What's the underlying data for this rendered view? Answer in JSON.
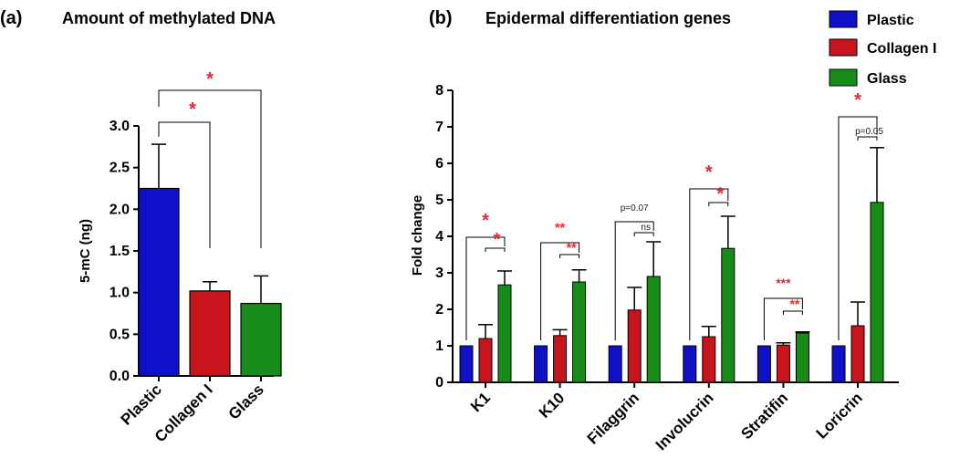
{
  "colors": {
    "plastic": "#1010c8",
    "collagen": "#c8141c",
    "glass": "#188c18",
    "sig": "#e8262e",
    "ns": "#222222"
  },
  "chart_data": [
    {
      "panel": "(a)",
      "type": "bar",
      "title": "Amount of methylated DNA",
      "ylabel": "5-mC (ng)",
      "xlabel": "",
      "ylim": [
        0,
        3.0
      ],
      "yticks": [
        "0.0",
        "0.5",
        "1.0",
        "1.5",
        "2.0",
        "2.5",
        "3.0"
      ],
      "categories": [
        "Plastic",
        "Collagen I",
        "Glass"
      ],
      "values": [
        2.25,
        1.02,
        0.87
      ],
      "errors": [
        0.53,
        0.11,
        0.33
      ],
      "annotations": [
        {
          "from": 0,
          "to": 1,
          "label": "*"
        },
        {
          "from": 0,
          "to": 2,
          "label": "*"
        }
      ]
    },
    {
      "panel": "(b)",
      "type": "bar",
      "title": "Epidermal differentiation genes",
      "ylabel": "Fold change",
      "xlabel": "",
      "ylim": [
        0,
        8
      ],
      "yticks": [
        "0",
        "1",
        "2",
        "3",
        "4",
        "5",
        "6",
        "7",
        "8"
      ],
      "legend_position": "top-right",
      "categories": [
        "K1",
        "K10",
        "Filaggrin",
        "Involucrin",
        "Stratifin",
        "Loricrin"
      ],
      "series": [
        {
          "name": "Plastic",
          "values": [
            1.0,
            1.0,
            1.0,
            1.0,
            1.0,
            1.0
          ],
          "errors": [
            0,
            0,
            0,
            0,
            0,
            0
          ]
        },
        {
          "name": "Collagen I",
          "values": [
            1.2,
            1.28,
            1.98,
            1.25,
            1.02,
            1.55
          ],
          "errors": [
            0.38,
            0.16,
            0.62,
            0.28,
            0.06,
            0.65
          ]
        },
        {
          "name": "Glass",
          "values": [
            2.67,
            2.75,
            2.9,
            3.67,
            1.35,
            4.93
          ],
          "errors": [
            0.38,
            0.33,
            0.95,
            0.88,
            0.03,
            1.5
          ]
        }
      ],
      "annotations": [
        {
          "category": "K1",
          "outer": "*",
          "inner": "*"
        },
        {
          "category": "K10",
          "outer": "**",
          "inner": "**"
        },
        {
          "category": "Filaggrin",
          "outer": "p=0.07",
          "inner": "ns"
        },
        {
          "category": "Involucrin",
          "outer": "*",
          "inner": "*"
        },
        {
          "category": "Stratifin",
          "outer": "***",
          "inner": "**"
        },
        {
          "category": "Loricrin",
          "outer": "*",
          "inner": "p=0.05"
        }
      ]
    }
  ]
}
